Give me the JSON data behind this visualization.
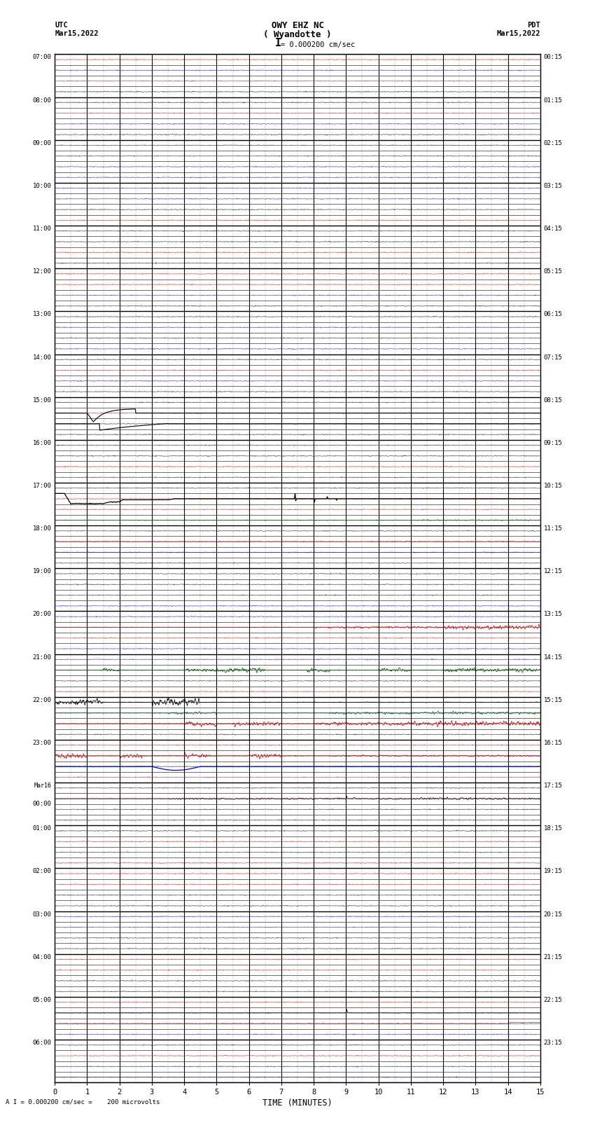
{
  "title_line1": "OWY EHZ NC",
  "title_line2": "( Wyandotte )",
  "scale_text": "I = 0.000200 cm/sec",
  "left_label": "UTC",
  "left_date": "Mar15,2022",
  "right_label": "PDT",
  "right_date": "Mar15,2022",
  "bottom_label": "TIME (MINUTES)",
  "bottom_note": "A I = 0.000200 cm/sec =    200 microvolts",
  "utc_times": [
    "07:00",
    "08:00",
    "09:00",
    "10:00",
    "11:00",
    "12:00",
    "13:00",
    "14:00",
    "15:00",
    "16:00",
    "17:00",
    "18:00",
    "19:00",
    "20:00",
    "21:00",
    "22:00",
    "23:00",
    "Mar16\n00:00",
    "01:00",
    "02:00",
    "03:00",
    "04:00",
    "05:00",
    "06:00"
  ],
  "pdt_times": [
    "00:15",
    "01:15",
    "02:15",
    "03:15",
    "04:15",
    "05:15",
    "06:15",
    "07:15",
    "08:15",
    "09:15",
    "10:15",
    "11:15",
    "12:15",
    "13:15",
    "14:15",
    "15:15",
    "16:15",
    "17:15",
    "18:15",
    "19:15",
    "20:15",
    "21:15",
    "22:15",
    "23:15"
  ],
  "n_rows": 24,
  "n_subrows": 4,
  "n_minutes": 15,
  "fig_width": 8.5,
  "fig_height": 16.13,
  "bg_color": "#ffffff"
}
